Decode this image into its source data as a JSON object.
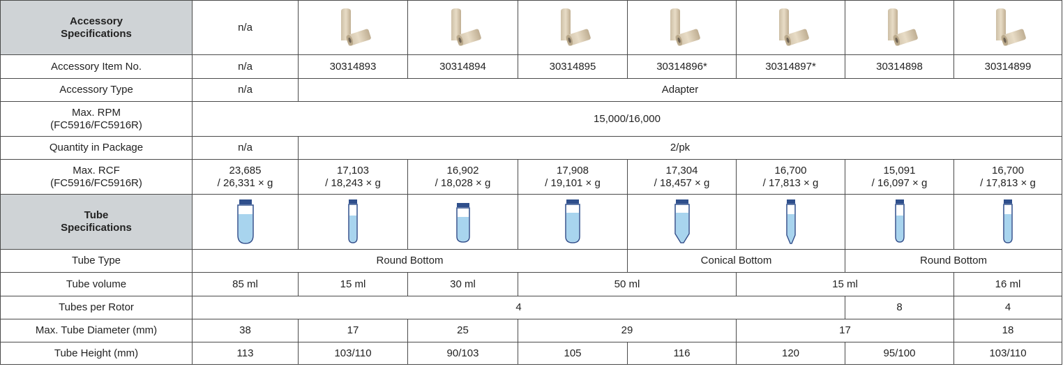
{
  "accessory_header": {
    "title_line1": "Accessory",
    "title_line2": "Specifications",
    "first_cell": "n/a"
  },
  "accessory_images": [
    "adapter-image",
    "adapter-image",
    "adapter-image",
    "adapter-image",
    "adapter-image",
    "adapter-image",
    "adapter-image"
  ],
  "item_no": {
    "label": "Accessory Item No.",
    "first": "n/a",
    "values": [
      "30314893",
      "30314894",
      "30314895",
      "30314896*",
      "30314897*",
      "30314898",
      "30314899"
    ]
  },
  "accessory_type": {
    "label": "Accessory Type",
    "first": "n/a",
    "value": "Adapter"
  },
  "max_rpm": {
    "label_line1": "Max. RPM",
    "label_line2": "(FC5916/FC5916R)",
    "value": "15,000/16,000"
  },
  "quantity": {
    "label": "Quantity in Package",
    "first": "n/a",
    "value": "2/pk"
  },
  "max_rcf": {
    "label_line1": "Max. RCF",
    "label_line2": "(FC5916/FC5916R)",
    "values": [
      {
        "line1": "23,685",
        "line2": "/ 26,331 × g"
      },
      {
        "line1": "17,103",
        "line2": "/ 18,243 × g"
      },
      {
        "line1": "16,902",
        "line2": "/ 18,028 × g"
      },
      {
        "line1": "17,908",
        "line2": "/ 19,101 × g"
      },
      {
        "line1": "17,304",
        "line2": "/ 18,457 × g"
      },
      {
        "line1": "16,700",
        "line2": "/ 17,813 × g"
      },
      {
        "line1": "15,091",
        "line2": "/ 16,097 × g"
      },
      {
        "line1": "16,700",
        "line2": "/ 17,813 × g"
      }
    ]
  },
  "tube_header": {
    "title_line1": "Tube",
    "title_line2": "Specifications"
  },
  "tube_icons": [
    "round-tube-icon",
    "round-tube-icon",
    "round-tube-icon",
    "round-tube-icon",
    "conical-tube-icon",
    "conical-tube-icon",
    "round-tube-icon",
    "round-tube-icon"
  ],
  "tube_type": {
    "label": "Tube Type",
    "round1": "Round Bottom",
    "conical": "Conical Bottom",
    "round2": "Round Bottom"
  },
  "tube_volume": {
    "label": "Tube volume",
    "v85": "85 ml",
    "v15a": "15 ml",
    "v30": "30 ml",
    "v50": "50 ml",
    "v15b": "15 ml",
    "v16": "16 ml"
  },
  "tubes_per_rotor": {
    "label": "Tubes per Rotor",
    "v4": "4",
    "v8": "8",
    "v4b": "4"
  },
  "max_diameter": {
    "label": "Max. Tube Diameter (mm)",
    "v38": "38",
    "v17a": "17",
    "v25": "25",
    "v29": "29",
    "v17b": "17",
    "v18": "18"
  },
  "tube_height": {
    "label": "Tube Height (mm)",
    "values": [
      "113",
      "103/110",
      "90/103",
      "105",
      "116",
      "120",
      "95/100",
      "103/110"
    ]
  },
  "colors": {
    "header_bg": "#cfd3d6",
    "tube_cap": "#2f4f8c",
    "tube_liquid": "#a8d4ee",
    "adapter": "#e8dcc6"
  }
}
